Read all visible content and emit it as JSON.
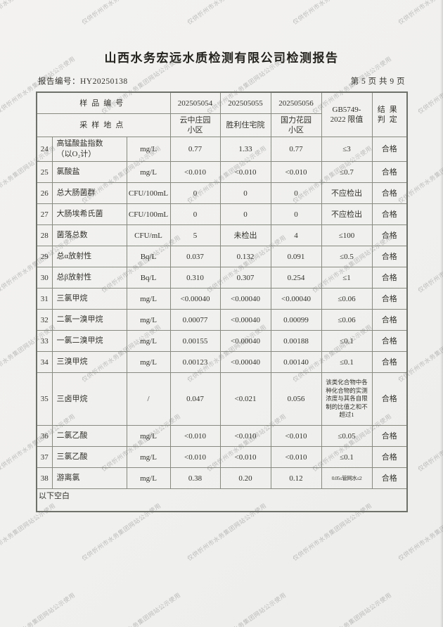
{
  "page": {
    "title": "山西水务宏远水质检测有限公司检测报告",
    "report_no_label": "报告编号：HY20250138",
    "page_indicator": "第 5 页 共 9 页",
    "below_blank": "以下空白",
    "watermark": "仅供忻州市水务集团网站公示使用",
    "paper_color": "#f1f0ee",
    "border_color": "#878a80",
    "text_color": "#32312d"
  },
  "table": {
    "header": {
      "sample_no_label": "样品编号",
      "location_label": "采样地点",
      "sample_ids": [
        "202505054",
        "202505055",
        "202505056"
      ],
      "locations": [
        "云中庄园\n小区",
        "胜利住宅院",
        "国力花园\n小区"
      ],
      "limit_label": "GB5749-\n2022 限值",
      "result_label": "结果\n判定"
    },
    "rows": [
      {
        "no": "24",
        "item": "高锰酸盐指数\n（以O₂计）",
        "unit": "mg/L",
        "v1": "0.77",
        "v2": "1.33",
        "v3": "0.77",
        "limit": "≤3",
        "result": "合格"
      },
      {
        "no": "25",
        "item": "氯酸盐",
        "unit": "mg/L",
        "v1": "<0.010",
        "v2": "<0.010",
        "v3": "<0.010",
        "limit": "≤0.7",
        "result": "合格"
      },
      {
        "no": "26",
        "item": "总大肠菌群",
        "unit": "CFU/100mL",
        "v1": "0",
        "v2": "0",
        "v3": "0",
        "limit": "不应检出",
        "result": "合格"
      },
      {
        "no": "27",
        "item": "大肠埃希氏菌",
        "unit": "CFU/100mL",
        "v1": "0",
        "v2": "0",
        "v3": "0",
        "limit": "不应检出",
        "result": "合格"
      },
      {
        "no": "28",
        "item": "菌落总数",
        "unit": "CFU/mL",
        "v1": "5",
        "v2": "未检出",
        "v3": "4",
        "limit": "≤100",
        "result": "合格"
      },
      {
        "no": "29",
        "item": "总α放射性",
        "unit": "Bq/L",
        "v1": "0.037",
        "v2": "0.132",
        "v3": "0.091",
        "limit": "≤0.5",
        "result": "合格"
      },
      {
        "no": "30",
        "item": "总β放射性",
        "unit": "Bq/L",
        "v1": "0.310",
        "v2": "0.307",
        "v3": "0.254",
        "limit": "≤1",
        "result": "合格"
      },
      {
        "no": "31",
        "item": "三氯甲烷",
        "unit": "mg/L",
        "v1": "<0.00040",
        "v2": "<0.00040",
        "v3": "<0.00040",
        "limit": "≤0.06",
        "result": "合格"
      },
      {
        "no": "32",
        "item": "二氯一溴甲烷",
        "unit": "mg/L",
        "v1": "0.00077",
        "v2": "<0.00040",
        "v3": "0.00099",
        "limit": "≤0.06",
        "result": "合格"
      },
      {
        "no": "33",
        "item": "一氯二溴甲烷",
        "unit": "mg/L",
        "v1": "0.00155",
        "v2": "<0.00040",
        "v3": "0.00188",
        "limit": "≤0.1",
        "result": "合格"
      },
      {
        "no": "34",
        "item": "三溴甲烷",
        "unit": "mg/L",
        "v1": "0.00123",
        "v2": "<0.00040",
        "v3": "0.00140",
        "limit": "≤0.1",
        "result": "合格"
      },
      {
        "no": "35",
        "item": "三卤甲烷",
        "unit": "/",
        "v1": "0.047",
        "v2": "<0.021",
        "v3": "0.056",
        "limit": "该类化合物中各种化合物的实测浓度与其各自限制的比值之和不超过1",
        "result": "合格"
      },
      {
        "no": "36",
        "item": "二氯乙酸",
        "unit": "mg/L",
        "v1": "<0.010",
        "v2": "<0.010",
        "v3": "<0.010",
        "limit": "≤0.05",
        "result": "合格"
      },
      {
        "no": "37",
        "item": "三氯乙酸",
        "unit": "mg/L",
        "v1": "<0.010",
        "v2": "<0.010",
        "v3": "<0.010",
        "limit": "≤0.1",
        "result": "合格"
      },
      {
        "no": "38",
        "item": "游离氯",
        "unit": "mg/L",
        "v1": "0.38",
        "v2": "0.20",
        "v3": "0.12",
        "limit": "0.05≤管网水≤2",
        "result": "合格"
      }
    ]
  }
}
